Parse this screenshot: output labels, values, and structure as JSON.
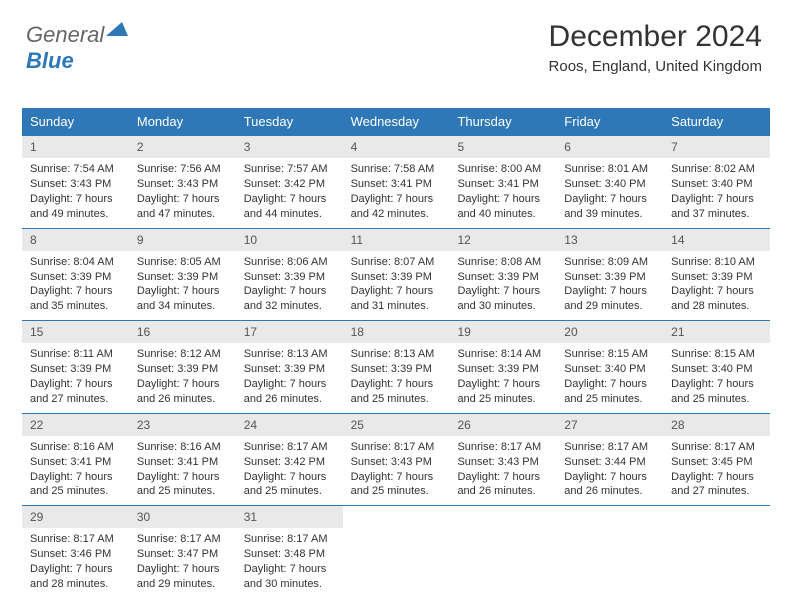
{
  "header": {
    "month": "December 2024",
    "location": "Roos, England, United Kingdom"
  },
  "style": {
    "header_bg": "#2f78b8",
    "header_fg": "#ffffff",
    "daynum_bg": "#e9e9e9",
    "daynum_fg": "#555555",
    "week_border": "#2f78b8",
    "body_fg": "#333333",
    "title_fontsize": 30,
    "subtitle_fontsize": 15,
    "body_fontsize": 11
  },
  "weekdays": [
    "Sunday",
    "Monday",
    "Tuesday",
    "Wednesday",
    "Thursday",
    "Friday",
    "Saturday"
  ],
  "days": [
    {
      "n": 1,
      "sr": "7:54 AM",
      "ss": "3:43 PM",
      "dh": 7,
      "dm": 49
    },
    {
      "n": 2,
      "sr": "7:56 AM",
      "ss": "3:43 PM",
      "dh": 7,
      "dm": 47
    },
    {
      "n": 3,
      "sr": "7:57 AM",
      "ss": "3:42 PM",
      "dh": 7,
      "dm": 44
    },
    {
      "n": 4,
      "sr": "7:58 AM",
      "ss": "3:41 PM",
      "dh": 7,
      "dm": 42
    },
    {
      "n": 5,
      "sr": "8:00 AM",
      "ss": "3:41 PM",
      "dh": 7,
      "dm": 40
    },
    {
      "n": 6,
      "sr": "8:01 AM",
      "ss": "3:40 PM",
      "dh": 7,
      "dm": 39
    },
    {
      "n": 7,
      "sr": "8:02 AM",
      "ss": "3:40 PM",
      "dh": 7,
      "dm": 37
    },
    {
      "n": 8,
      "sr": "8:04 AM",
      "ss": "3:39 PM",
      "dh": 7,
      "dm": 35
    },
    {
      "n": 9,
      "sr": "8:05 AM",
      "ss": "3:39 PM",
      "dh": 7,
      "dm": 34
    },
    {
      "n": 10,
      "sr": "8:06 AM",
      "ss": "3:39 PM",
      "dh": 7,
      "dm": 32
    },
    {
      "n": 11,
      "sr": "8:07 AM",
      "ss": "3:39 PM",
      "dh": 7,
      "dm": 31
    },
    {
      "n": 12,
      "sr": "8:08 AM",
      "ss": "3:39 PM",
      "dh": 7,
      "dm": 30
    },
    {
      "n": 13,
      "sr": "8:09 AM",
      "ss": "3:39 PM",
      "dh": 7,
      "dm": 29
    },
    {
      "n": 14,
      "sr": "8:10 AM",
      "ss": "3:39 PM",
      "dh": 7,
      "dm": 28
    },
    {
      "n": 15,
      "sr": "8:11 AM",
      "ss": "3:39 PM",
      "dh": 7,
      "dm": 27
    },
    {
      "n": 16,
      "sr": "8:12 AM",
      "ss": "3:39 PM",
      "dh": 7,
      "dm": 26
    },
    {
      "n": 17,
      "sr": "8:13 AM",
      "ss": "3:39 PM",
      "dh": 7,
      "dm": 26
    },
    {
      "n": 18,
      "sr": "8:13 AM",
      "ss": "3:39 PM",
      "dh": 7,
      "dm": 25
    },
    {
      "n": 19,
      "sr": "8:14 AM",
      "ss": "3:39 PM",
      "dh": 7,
      "dm": 25
    },
    {
      "n": 20,
      "sr": "8:15 AM",
      "ss": "3:40 PM",
      "dh": 7,
      "dm": 25
    },
    {
      "n": 21,
      "sr": "8:15 AM",
      "ss": "3:40 PM",
      "dh": 7,
      "dm": 25
    },
    {
      "n": 22,
      "sr": "8:16 AM",
      "ss": "3:41 PM",
      "dh": 7,
      "dm": 25
    },
    {
      "n": 23,
      "sr": "8:16 AM",
      "ss": "3:41 PM",
      "dh": 7,
      "dm": 25
    },
    {
      "n": 24,
      "sr": "8:17 AM",
      "ss": "3:42 PM",
      "dh": 7,
      "dm": 25
    },
    {
      "n": 25,
      "sr": "8:17 AM",
      "ss": "3:43 PM",
      "dh": 7,
      "dm": 25
    },
    {
      "n": 26,
      "sr": "8:17 AM",
      "ss": "3:43 PM",
      "dh": 7,
      "dm": 26
    },
    {
      "n": 27,
      "sr": "8:17 AM",
      "ss": "3:44 PM",
      "dh": 7,
      "dm": 26
    },
    {
      "n": 28,
      "sr": "8:17 AM",
      "ss": "3:45 PM",
      "dh": 7,
      "dm": 27
    },
    {
      "n": 29,
      "sr": "8:17 AM",
      "ss": "3:46 PM",
      "dh": 7,
      "dm": 28
    },
    {
      "n": 30,
      "sr": "8:17 AM",
      "ss": "3:47 PM",
      "dh": 7,
      "dm": 29
    },
    {
      "n": 31,
      "sr": "8:17 AM",
      "ss": "3:48 PM",
      "dh": 7,
      "dm": 30
    }
  ],
  "labels": {
    "sunrise": "Sunrise:",
    "sunset": "Sunset:",
    "daylight": "Daylight:",
    "hours": "hours",
    "and": "and",
    "minutes": "minutes."
  }
}
